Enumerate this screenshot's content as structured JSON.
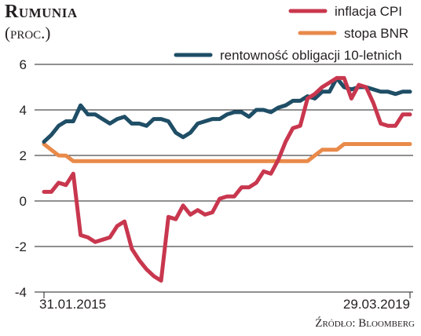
{
  "chart_data": {
    "type": "line",
    "title": "Rumunia",
    "subtitle": "(proc.)",
    "source": "Źródło: Bloomberg",
    "ylim": [
      -4,
      6
    ],
    "y_ticks": [
      "-4",
      "-2",
      "0",
      "2",
      "4",
      "6"
    ],
    "x_range": [
      "2015-01-31",
      "2019-03-29"
    ],
    "x_labels": [
      "31.01.2015",
      "29.03.2019"
    ],
    "grid": "horizontal",
    "legend_position": "top-right",
    "series": [
      {
        "name": "inflacja CPI",
        "color": "#c8374e",
        "x": [
          "2015-01",
          "2015-02",
          "2015-03",
          "2015-04",
          "2015-05",
          "2015-06",
          "2015-07",
          "2015-08",
          "2015-09",
          "2015-10",
          "2015-11",
          "2015-12",
          "2016-01",
          "2016-02",
          "2016-03",
          "2016-04",
          "2016-05",
          "2016-06",
          "2016-07",
          "2016-08",
          "2016-09",
          "2016-10",
          "2016-11",
          "2016-12",
          "2017-01",
          "2017-02",
          "2017-03",
          "2017-04",
          "2017-05",
          "2017-06",
          "2017-07",
          "2017-08",
          "2017-09",
          "2017-10",
          "2017-11",
          "2017-12",
          "2018-01",
          "2018-02",
          "2018-03",
          "2018-04",
          "2018-05",
          "2018-06",
          "2018-07",
          "2018-08",
          "2018-09",
          "2018-10",
          "2018-11",
          "2018-12",
          "2019-01",
          "2019-02",
          "2019-03"
        ],
        "values": [
          0.4,
          0.4,
          0.8,
          0.7,
          1.2,
          -1.5,
          -1.6,
          -1.8,
          -1.7,
          -1.6,
          -1.1,
          -0.9,
          -2.1,
          -2.6,
          -3.0,
          -3.3,
          -3.5,
          -0.7,
          -0.8,
          -0.2,
          -0.6,
          -0.4,
          -0.6,
          -0.5,
          0.1,
          0.2,
          0.2,
          0.6,
          0.6,
          0.8,
          1.3,
          1.2,
          1.8,
          2.6,
          3.2,
          3.3,
          4.5,
          4.7,
          5.0,
          5.2,
          5.4,
          5.4,
          4.5,
          5.1,
          5.0,
          4.3,
          3.4,
          3.3,
          3.3,
          3.8,
          3.8
        ]
      },
      {
        "name": "stopa BNR",
        "color": "#e98a4a",
        "x": [
          "2015-01",
          "2015-02",
          "2015-03",
          "2015-04",
          "2015-05",
          "2015-06",
          "2018-01",
          "2018-02",
          "2018-03",
          "2018-05",
          "2018-06",
          "2019-03"
        ],
        "values": [
          2.5,
          2.25,
          2.0,
          1.99,
          1.75,
          1.75,
          1.75,
          2.0,
          2.25,
          2.25,
          2.5,
          2.5
        ]
      },
      {
        "name": "rentowność obligacji 10-letnich",
        "color": "#1f4e66",
        "x": [
          "2015-01",
          "2015-02",
          "2015-03",
          "2015-04",
          "2015-05",
          "2015-06",
          "2015-07",
          "2015-08",
          "2015-09",
          "2015-10",
          "2015-11",
          "2015-12",
          "2016-01",
          "2016-02",
          "2016-03",
          "2016-04",
          "2016-05",
          "2016-06",
          "2016-07",
          "2016-08",
          "2016-09",
          "2016-10",
          "2016-11",
          "2016-12",
          "2017-01",
          "2017-02",
          "2017-03",
          "2017-04",
          "2017-05",
          "2017-06",
          "2017-07",
          "2017-08",
          "2017-09",
          "2017-10",
          "2017-11",
          "2017-12",
          "2018-01",
          "2018-02",
          "2018-03",
          "2018-04",
          "2018-05",
          "2018-06",
          "2018-07",
          "2018-08",
          "2018-09",
          "2018-10",
          "2018-11",
          "2018-12",
          "2019-01",
          "2019-02",
          "2019-03"
        ],
        "values": [
          2.6,
          2.9,
          3.3,
          3.5,
          3.5,
          4.2,
          3.8,
          3.8,
          3.6,
          3.4,
          3.6,
          3.7,
          3.4,
          3.4,
          3.3,
          3.6,
          3.6,
          3.5,
          3.0,
          2.8,
          3.0,
          3.4,
          3.5,
          3.6,
          3.6,
          3.8,
          3.9,
          3.9,
          3.7,
          4.0,
          4.0,
          3.9,
          4.1,
          4.2,
          4.4,
          4.4,
          4.6,
          4.5,
          4.8,
          4.8,
          5.4,
          5.0,
          4.9,
          5.0,
          5.0,
          4.9,
          4.8,
          4.8,
          4.7,
          4.8,
          4.8
        ]
      }
    ]
  }
}
